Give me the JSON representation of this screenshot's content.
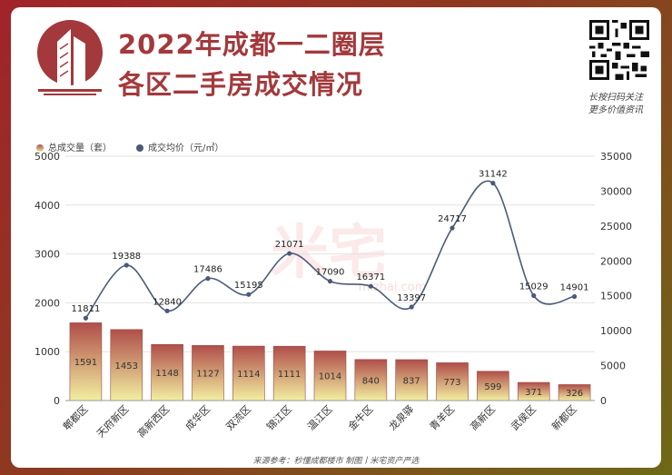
{
  "header": {
    "title_line1": "2022年成都一二圈层",
    "title_line2": "各区二手房成交情况",
    "qr_caption_line1": "长按扫码关注",
    "qr_caption_line2": "更多价值资讯"
  },
  "legend": {
    "bar_label": "总成交量（套）",
    "line_label": "成交均价（元/㎡）"
  },
  "watermark": {
    "text": "米宅",
    "url": "mizhai.com"
  },
  "footer": {
    "source": "来源参考：秒懂成都楼市 制图丨米宅资产严选"
  },
  "colors": {
    "background_red": "#a0242a",
    "title": "#a3393c",
    "bar_top": "#b04e4a",
    "bar_bottom": "#f2efa0",
    "line": "#4a5a78"
  },
  "chart_data": {
    "type": "bar",
    "categories": [
      "郫都区",
      "天府新区",
      "高新西区",
      "成华区",
      "双流区",
      "锦江区",
      "温江区",
      "金牛区",
      "龙泉驿",
      "青羊区",
      "高新区",
      "武侯区",
      "新都区"
    ],
    "series": [
      {
        "name": "总成交量（套）",
        "type": "bar",
        "axis": "left",
        "values": [
          1591,
          1453,
          1148,
          1127,
          1114,
          1111,
          1014,
          840,
          837,
          773,
          599,
          371,
          326
        ]
      },
      {
        "name": "成交均价（元/㎡）",
        "type": "line",
        "axis": "right",
        "values": [
          11811,
          19388,
          12840,
          17486,
          15195,
          21071,
          17090,
          16371,
          13397,
          24717,
          31142,
          15029,
          14901
        ]
      }
    ],
    "y_left": {
      "min": 0,
      "max": 5000,
      "ticks": [
        0,
        1000,
        2000,
        3000,
        4000,
        5000
      ]
    },
    "y_right": {
      "min": 0,
      "max": 35000,
      "ticks": [
        0,
        5000,
        10000,
        15000,
        20000,
        25000,
        30000,
        35000
      ]
    },
    "grid": true,
    "legend_position": "top-left"
  }
}
